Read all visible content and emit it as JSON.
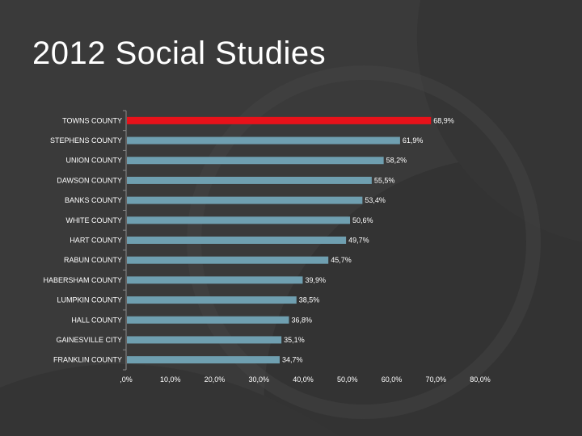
{
  "slide": {
    "title": "2012 Social Studies"
  },
  "colors": {
    "highlight": "#e8121a",
    "bar": "#6f9fb0",
    "background": "#3a3a3a"
  },
  "chart_data": {
    "type": "bar",
    "orientation": "horizontal",
    "title": "",
    "xlabel": "",
    "ylabel": "",
    "categories": [
      "TOWNS COUNTY",
      "STEPHENS COUNTY",
      "UNION COUNTY",
      "DAWSON COUNTY",
      "BANKS COUNTY",
      "WHITE COUNTY",
      "HART COUNTY",
      "RABUN COUNTY",
      "HABERSHAM COUNTY",
      "LUMPKIN COUNTY",
      "HALL COUNTY",
      "GAINESVILLE CITY",
      "FRANKLIN COUNTY"
    ],
    "values": [
      68.9,
      61.9,
      58.2,
      55.5,
      53.4,
      50.6,
      49.7,
      45.7,
      39.9,
      38.5,
      36.8,
      35.1,
      34.7
    ],
    "value_labels": [
      "68,9%",
      "61,9%",
      "58,2%",
      "55,5%",
      "53,4%",
      "50,6%",
      "49,7%",
      "45,7%",
      "39,9%",
      "38,5%",
      "36,8%",
      "35,1%",
      "34,7%"
    ],
    "highlight_index": 0,
    "xlim": [
      0,
      80
    ],
    "xticks": [
      0,
      10,
      20,
      30,
      40,
      50,
      60,
      70,
      80
    ],
    "xtick_labels": [
      ",0%",
      "10,0%",
      "20,0%",
      "30,0%",
      "40,0%",
      "50,0%",
      "60,0%",
      "70,0%",
      "80,0%"
    ],
    "grid": false,
    "legend": "none"
  }
}
